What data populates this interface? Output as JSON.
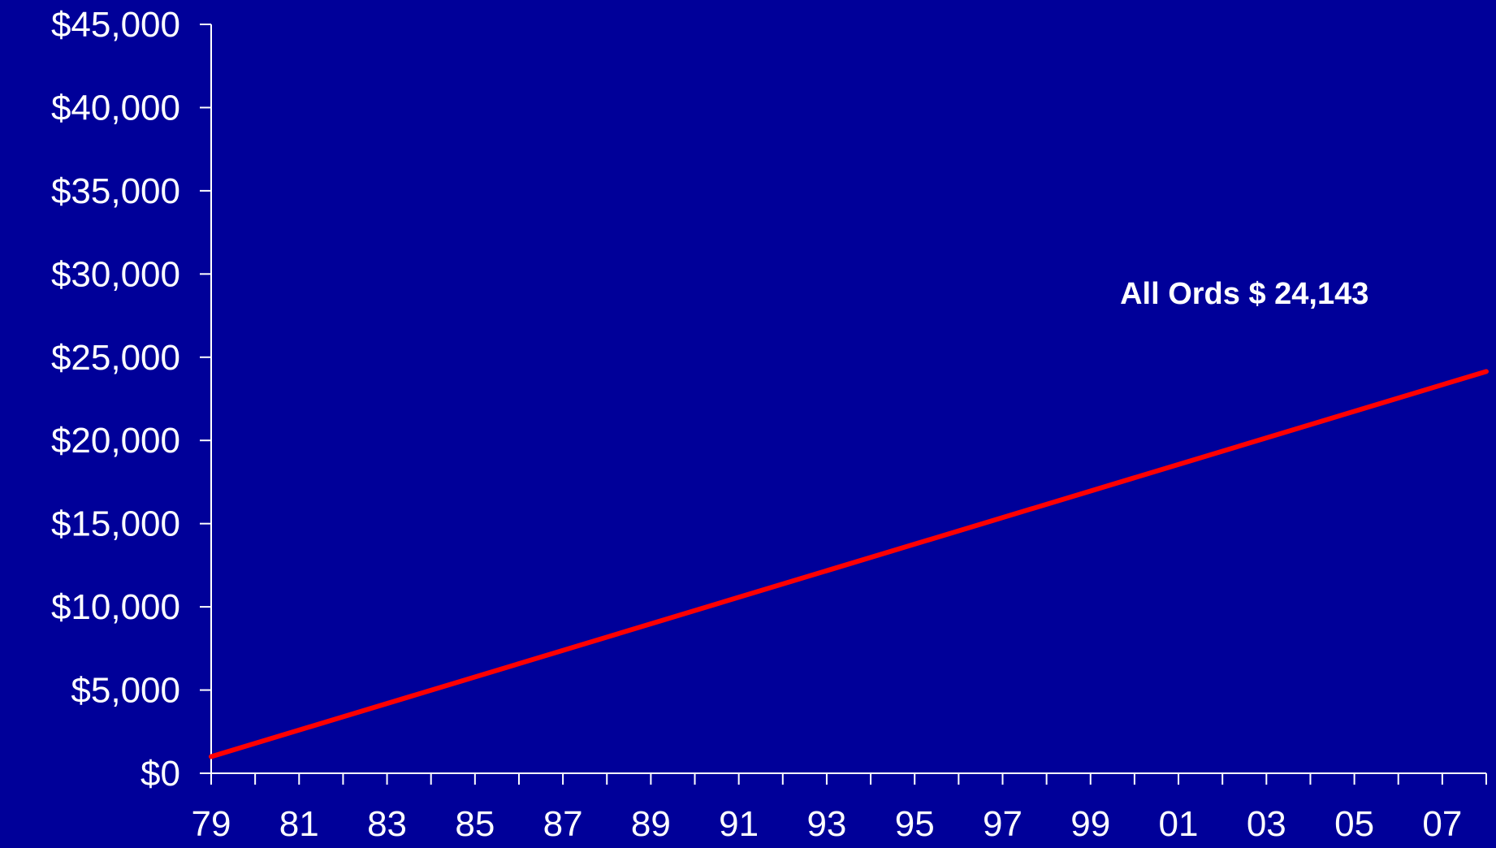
{
  "colors": {
    "background": "#000099",
    "axis": "#FFFFFF",
    "text": "#FFFFFF",
    "series": "#FF0000"
  },
  "chart_data": {
    "type": "line",
    "title": "",
    "xlabel": "",
    "ylabel": "",
    "x_tick_labels": [
      "79",
      "81",
      "83",
      "85",
      "87",
      "89",
      "91",
      "93",
      "95",
      "97",
      "99",
      "01",
      "03",
      "05",
      "07"
    ],
    "y_tick_labels": [
      "$0",
      "$5,000",
      "$10,000",
      "$15,000",
      "$20,000",
      "$25,000",
      "$30,000",
      "$35,000",
      "$40,000",
      "$45,000"
    ],
    "xlim": [
      1979,
      2008
    ],
    "ylim": [
      0,
      45000
    ],
    "y_major_step": 5000,
    "x_minor_step": 1,
    "grid": false,
    "legend": "none",
    "series": [
      {
        "color": "#FF0000",
        "points": [
          {
            "x": 1979,
            "y": 1000
          },
          {
            "x": 2008,
            "y": 24143
          }
        ]
      }
    ],
    "annotations": [
      {
        "text": "All Ords $ 24,143",
        "x": 2002.5,
        "y": 28200
      }
    ]
  }
}
